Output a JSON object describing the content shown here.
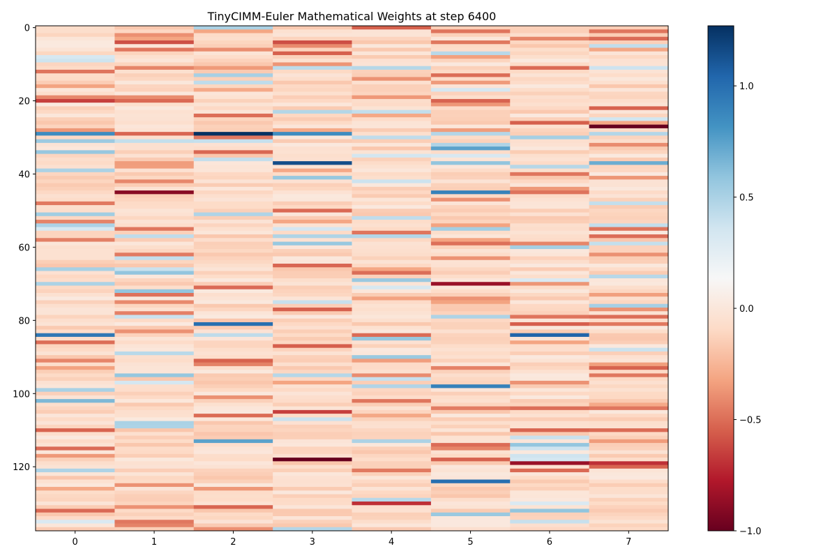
{
  "chart_data": {
    "type": "heatmap",
    "title": "TinyCIMM-Euler Mathematical Weights at step 6400",
    "xlabel": "",
    "ylabel": "",
    "x_ticks": [
      0,
      1,
      2,
      3,
      4,
      5,
      6,
      7
    ],
    "y_ticks": [
      0,
      20,
      40,
      60,
      80,
      100,
      120
    ],
    "x_range": [
      -0.5,
      7.5
    ],
    "y_range": [
      -0.5,
      137.5
    ],
    "rows": 138,
    "cols": 8,
    "colormap": "RdBu",
    "vmin": -1.0,
    "vmax": 1.27,
    "colorbar_ticks": [
      1.0,
      0.5,
      0.0,
      -0.5,
      -1.0
    ],
    "colorbar_tick_labels": [
      "1.0",
      "0.5",
      "0.0",
      "−0.5",
      "−1.0"
    ],
    "notable_values": [
      {
        "row": 29,
        "col": 2,
        "value": 1.27
      },
      {
        "row": 37,
        "col": 3,
        "value": 1.15
      },
      {
        "row": 45,
        "col": 5,
        "value": 0.9
      },
      {
        "row": 29,
        "col": 0,
        "value": 0.85
      },
      {
        "row": 29,
        "col": 3,
        "value": 0.85
      },
      {
        "row": 81,
        "col": 2,
        "value": 1.0
      },
      {
        "row": 84,
        "col": 0,
        "value": 0.95
      },
      {
        "row": 84,
        "col": 6,
        "value": 1.05
      },
      {
        "row": 98,
        "col": 5,
        "value": 0.9
      },
      {
        "row": 124,
        "col": 5,
        "value": 1.0
      },
      {
        "row": 113,
        "col": 2,
        "value": 0.75
      },
      {
        "row": 37,
        "col": 7,
        "value": 0.7
      },
      {
        "row": 33,
        "col": 5,
        "value": 0.75
      },
      {
        "row": 102,
        "col": 0,
        "value": 0.65
      },
      {
        "row": 45,
        "col": 1,
        "value": -0.9
      },
      {
        "row": 27,
        "col": 7,
        "value": -1.0
      },
      {
        "row": 118,
        "col": 3,
        "value": -1.0
      },
      {
        "row": 70,
        "col": 5,
        "value": -0.85
      },
      {
        "row": 119,
        "col": 6,
        "value": -0.85
      },
      {
        "row": 119,
        "col": 7,
        "value": -0.7
      },
      {
        "row": 130,
        "col": 4,
        "value": -0.7
      },
      {
        "row": 20,
        "col": 0,
        "value": -0.65
      },
      {
        "row": 4,
        "col": 1,
        "value": -0.6
      },
      {
        "row": 4,
        "col": 3,
        "value": -0.6
      },
      {
        "row": 105,
        "col": 3,
        "value": -0.65
      },
      {
        "row": 26,
        "col": 6,
        "value": -0.55
      }
    ]
  }
}
